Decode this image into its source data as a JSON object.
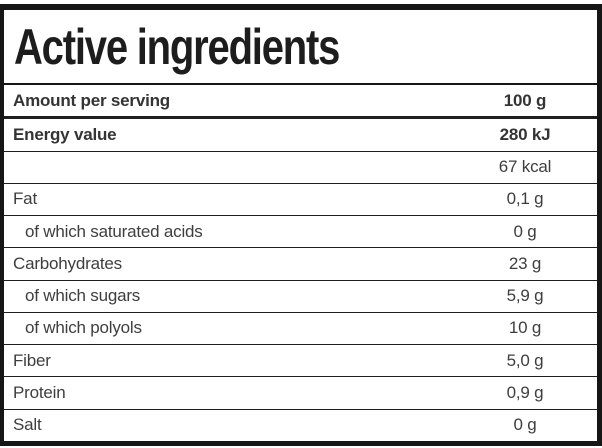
{
  "title": "Active ingredients",
  "colors": {
    "border": "#161616",
    "title_text": "#1d1d1d",
    "row_text": "#3e3e3e",
    "background": "#ffffff"
  },
  "table": {
    "rows": [
      {
        "label": "Amount per serving",
        "value": "100 g",
        "bold": true,
        "sub": false
      },
      {
        "label": "Energy value",
        "value": "280 kJ",
        "bold": true,
        "sub": false
      },
      {
        "label": "",
        "value": "67 kcal",
        "bold": false,
        "sub": false
      },
      {
        "label": "Fat",
        "value": "0,1 g",
        "bold": false,
        "sub": false
      },
      {
        "label": "of which saturated acids",
        "value": "0 g",
        "bold": false,
        "sub": true
      },
      {
        "label": "Carbohydrates",
        "value": "23 g",
        "bold": false,
        "sub": false
      },
      {
        "label": "of which sugars",
        "value": "5,9 g",
        "bold": false,
        "sub": true
      },
      {
        "label": "of which polyols",
        "value": "10 g",
        "bold": false,
        "sub": true
      },
      {
        "label": "Fiber",
        "value": "5,0 g",
        "bold": false,
        "sub": false
      },
      {
        "label": "Protein",
        "value": "0,9 g",
        "bold": false,
        "sub": false
      },
      {
        "label": "Salt",
        "value": "0 g",
        "bold": false,
        "sub": false
      }
    ]
  }
}
